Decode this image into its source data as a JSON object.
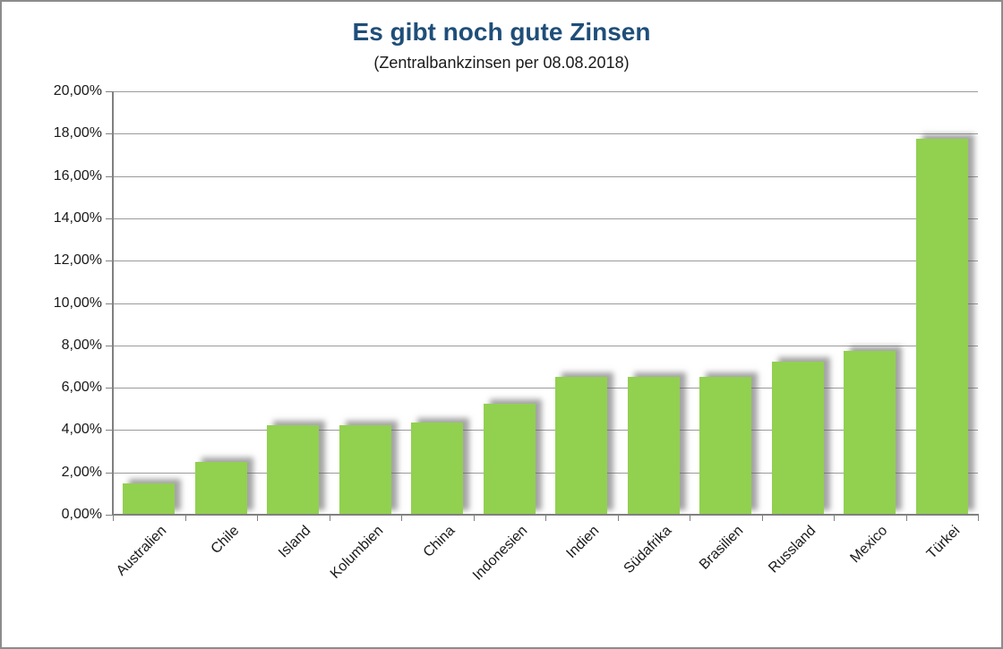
{
  "frame": {
    "background": "#ffffff",
    "border_color": "#8c8c8c"
  },
  "chart_data": {
    "type": "bar",
    "title": "Es gibt noch gute Zinsen",
    "subtitle": "(Zentralbankzinsen per 08.08.2018)",
    "categories": [
      "Australien",
      "Chile",
      "Island",
      "Kolumbien",
      "China",
      "Indonesien",
      "Indien",
      "Südafrika",
      "Brasilien",
      "Russland",
      "Mexico",
      "Türkei"
    ],
    "values": [
      1.5,
      2.5,
      4.25,
      4.25,
      4.35,
      5.25,
      6.5,
      6.5,
      6.5,
      7.25,
      7.75,
      17.75
    ],
    "value_unit": "%",
    "ylim": [
      0,
      20
    ],
    "y_tick_step": 2,
    "y_tick_labels": [
      "0,00%",
      "2,00%",
      "4,00%",
      "6,00%",
      "8,00%",
      "10,00%",
      "12,00%",
      "14,00%",
      "16,00%",
      "18,00%",
      "20,00%"
    ],
    "xlabel": "",
    "ylabel": "",
    "grid": true,
    "legend": "none",
    "x_label_rotation_deg": -45,
    "bar_color": "#92d050",
    "title_color": "#1f4e79",
    "axis_color": "#808080",
    "gridline_color": "#9b9b9b",
    "text_color": "#1a1a1a"
  }
}
